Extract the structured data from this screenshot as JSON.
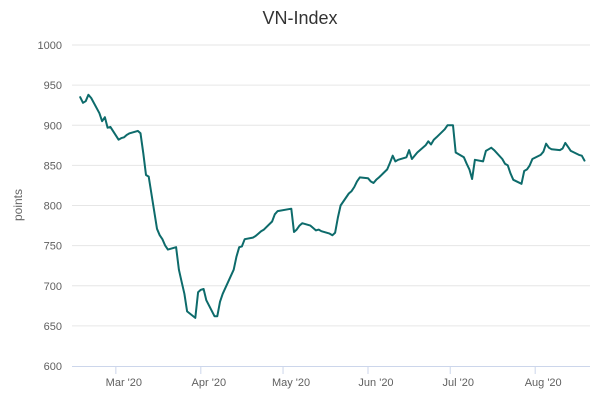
{
  "chart_data": {
    "type": "line",
    "title": "VN-Index",
    "xlabel": "",
    "ylabel": "points",
    "ylim": [
      600,
      1000
    ],
    "yticks": [
      600,
      650,
      700,
      750,
      800,
      850,
      900,
      950,
      1000
    ],
    "xlim": [
      "2020-02-14",
      "2020-08-21"
    ],
    "xticks": [
      {
        "date": "2020-03-01",
        "label": "Mar '20"
      },
      {
        "date": "2020-04-01",
        "label": "Apr '20"
      },
      {
        "date": "2020-05-01",
        "label": "May '20"
      },
      {
        "date": "2020-06-01",
        "label": "Jun '20"
      },
      {
        "date": "2020-07-01",
        "label": "Jul '20"
      },
      {
        "date": "2020-08-01",
        "label": "Aug '20"
      }
    ],
    "grid": true,
    "legend": "none",
    "series": [
      {
        "color": "#0d6b6b",
        "points": [
          [
            "2020-02-17",
            935
          ],
          [
            "2020-02-18",
            928
          ],
          [
            "2020-02-19",
            930
          ],
          [
            "2020-02-20",
            938
          ],
          [
            "2020-02-21",
            934
          ],
          [
            "2020-02-24",
            915
          ],
          [
            "2020-02-25",
            905
          ],
          [
            "2020-02-26",
            910
          ],
          [
            "2020-02-27",
            897
          ],
          [
            "2020-02-28",
            898
          ],
          [
            "2020-03-02",
            882
          ],
          [
            "2020-03-03",
            884
          ],
          [
            "2020-03-04",
            885
          ],
          [
            "2020-03-05",
            888
          ],
          [
            "2020-03-06",
            890
          ],
          [
            "2020-03-09",
            893
          ],
          [
            "2020-03-10",
            890
          ],
          [
            "2020-03-11",
            865
          ],
          [
            "2020-03-12",
            838
          ],
          [
            "2020-03-13",
            836
          ],
          [
            "2020-03-16",
            771
          ],
          [
            "2020-03-17",
            763
          ],
          [
            "2020-03-18",
            758
          ],
          [
            "2020-03-19",
            750
          ],
          [
            "2020-03-20",
            745
          ],
          [
            "2020-03-23",
            748
          ],
          [
            "2020-03-24",
            720
          ],
          [
            "2020-03-25",
            705
          ],
          [
            "2020-03-26",
            690
          ],
          [
            "2020-03-27",
            668
          ],
          [
            "2020-03-30",
            660
          ],
          [
            "2020-03-31",
            692
          ],
          [
            "2020-04-01",
            695
          ],
          [
            "2020-04-02",
            696
          ],
          [
            "2020-04-03",
            682
          ],
          [
            "2020-04-06",
            662
          ],
          [
            "2020-04-07",
            662
          ],
          [
            "2020-04-08",
            680
          ],
          [
            "2020-04-09",
            690
          ],
          [
            "2020-04-13",
            720
          ],
          [
            "2020-04-14",
            736
          ],
          [
            "2020-04-15",
            748
          ],
          [
            "2020-04-16",
            749
          ],
          [
            "2020-04-17",
            758
          ],
          [
            "2020-04-20",
            760
          ],
          [
            "2020-04-21",
            762
          ],
          [
            "2020-04-22",
            765
          ],
          [
            "2020-04-23",
            768
          ],
          [
            "2020-04-24",
            770
          ],
          [
            "2020-04-27",
            780
          ],
          [
            "2020-04-28",
            789
          ],
          [
            "2020-04-29",
            793
          ],
          [
            "2020-05-04",
            796
          ],
          [
            "2020-05-05",
            767
          ],
          [
            "2020-05-06",
            770
          ],
          [
            "2020-05-07",
            775
          ],
          [
            "2020-05-08",
            778
          ],
          [
            "2020-05-11",
            775
          ],
          [
            "2020-05-12",
            772
          ],
          [
            "2020-05-13",
            769
          ],
          [
            "2020-05-14",
            770
          ],
          [
            "2020-05-15",
            768
          ],
          [
            "2020-05-18",
            765
          ],
          [
            "2020-05-19",
            763
          ],
          [
            "2020-05-20",
            766
          ],
          [
            "2020-05-21",
            785
          ],
          [
            "2020-05-22",
            800
          ],
          [
            "2020-05-25",
            815
          ],
          [
            "2020-05-26",
            818
          ],
          [
            "2020-05-27",
            823
          ],
          [
            "2020-05-28",
            830
          ],
          [
            "2020-05-29",
            835
          ],
          [
            "2020-06-01",
            834
          ],
          [
            "2020-06-02",
            830
          ],
          [
            "2020-06-03",
            828
          ],
          [
            "2020-06-04",
            832
          ],
          [
            "2020-06-05",
            835
          ],
          [
            "2020-06-08",
            845
          ],
          [
            "2020-06-09",
            853
          ],
          [
            "2020-06-10",
            862
          ],
          [
            "2020-06-11",
            855
          ],
          [
            "2020-06-12",
            857
          ],
          [
            "2020-06-15",
            860
          ],
          [
            "2020-06-16",
            869
          ],
          [
            "2020-06-17",
            858
          ],
          [
            "2020-06-18",
            862
          ],
          [
            "2020-06-19",
            866
          ],
          [
            "2020-06-22",
            875
          ],
          [
            "2020-06-23",
            880
          ],
          [
            "2020-06-24",
            876
          ],
          [
            "2020-06-25",
            882
          ],
          [
            "2020-06-26",
            885
          ],
          [
            "2020-06-29",
            895
          ],
          [
            "2020-06-30",
            900
          ],
          [
            "2020-07-02",
            900
          ],
          [
            "2020-07-03",
            866
          ],
          [
            "2020-07-06",
            860
          ],
          [
            "2020-07-07",
            852
          ],
          [
            "2020-07-08",
            845
          ],
          [
            "2020-07-09",
            833
          ],
          [
            "2020-07-10",
            857
          ],
          [
            "2020-07-13",
            855
          ],
          [
            "2020-07-14",
            868
          ],
          [
            "2020-07-15",
            870
          ],
          [
            "2020-07-16",
            872
          ],
          [
            "2020-07-17",
            869
          ],
          [
            "2020-07-20",
            858
          ],
          [
            "2020-07-21",
            852
          ],
          [
            "2020-07-22",
            850
          ],
          [
            "2020-07-23",
            840
          ],
          [
            "2020-07-24",
            832
          ],
          [
            "2020-07-27",
            827
          ],
          [
            "2020-07-28",
            843
          ],
          [
            "2020-07-29",
            845
          ],
          [
            "2020-07-30",
            850
          ],
          [
            "2020-07-31",
            858
          ],
          [
            "2020-08-03",
            863
          ],
          [
            "2020-08-04",
            867
          ],
          [
            "2020-08-05",
            877
          ],
          [
            "2020-08-06",
            872
          ],
          [
            "2020-08-07",
            870
          ],
          [
            "2020-08-10",
            869
          ],
          [
            "2020-08-11",
            871
          ],
          [
            "2020-08-12",
            878
          ],
          [
            "2020-08-13",
            873
          ],
          [
            "2020-08-14",
            868
          ],
          [
            "2020-08-17",
            863
          ],
          [
            "2020-08-18",
            862
          ],
          [
            "2020-08-19",
            856
          ]
        ]
      }
    ]
  }
}
